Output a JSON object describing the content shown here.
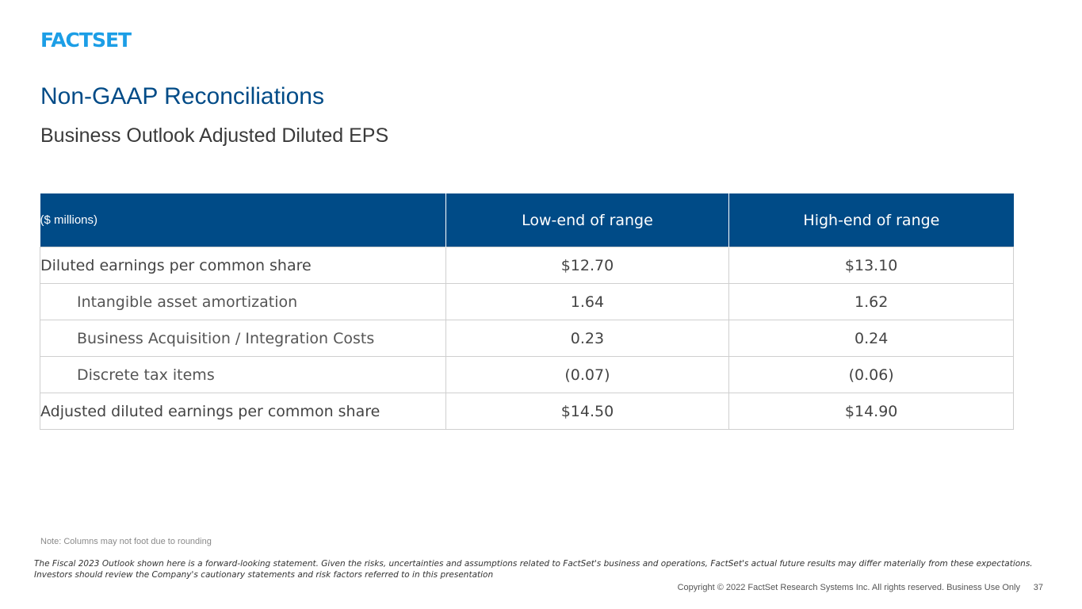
{
  "logo": {
    "text": "FACTSET"
  },
  "title": "Non-GAAP Reconciliations",
  "subtitle": "Business Outlook Adjusted Diluted EPS",
  "table": {
    "headers": [
      "($ millions)",
      "Low-end of range",
      "High-end of range"
    ],
    "rows": [
      {
        "label": "Diluted earnings per common share",
        "low": "$12.70",
        "high": "$13.10"
      },
      {
        "label": "Intangible asset amortization",
        "low": "1.64",
        "high": "1.62"
      },
      {
        "label": "Business Acquisition / Integration Costs",
        "low": "0.23",
        "high": "0.24"
      },
      {
        "label": "Discrete tax items",
        "low": "(0.07)",
        "high": "(0.06)"
      },
      {
        "label": "Adjusted diluted earnings per common share",
        "low": "$14.50",
        "high": "$14.90"
      }
    ]
  },
  "note": "Note: Columns may not foot due to rounding",
  "disclaimer": [
    "The Fiscal 2023 Outlook shown here is a forward-looking statement. Given the risks, uncertainties and assumptions related to FactSet's business and operations, FactSet's actual future results may differ materially from these expectations.",
    "Investors should review the Company's cautionary statements and risk factors referred to in this presentation"
  ],
  "footer": {
    "copyright": "Copyright © 2022 FactSet Research Systems Inc. All rights reserved. Business Use Only",
    "page_number": "37"
  },
  "colors": {
    "brand_blue": "#004b87",
    "logo_blue": "#1c9ee6"
  }
}
